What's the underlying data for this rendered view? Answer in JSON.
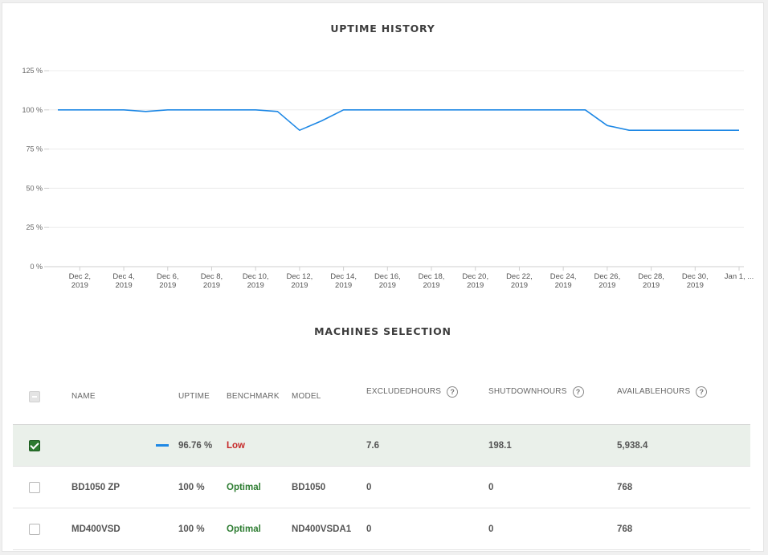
{
  "uptime_section": {
    "title": "UPTIME HISTORY"
  },
  "machines_section": {
    "title": "MACHINES SELECTION"
  },
  "colors": {
    "series": "#1e88e5",
    "low": "#c62828",
    "optimal": "#2e7d32",
    "selected_row": "#eaf0ea",
    "checkbox_checked": "#2d7a30"
  },
  "chart_data": {
    "type": "line",
    "title": "UPTIME HISTORY",
    "ylim": [
      0,
      125
    ],
    "y_ticks": [
      0,
      25,
      50,
      75,
      100,
      125
    ],
    "y_tick_labels": [
      "0 %",
      "25 %",
      "50 %",
      "75 %",
      "100 %",
      "125 %"
    ],
    "grid": "horizontal",
    "x_tick_labels": [
      [
        "Dec 2,",
        "2019"
      ],
      [
        "Dec 4,",
        "2019"
      ],
      [
        "Dec 6,",
        "2019"
      ],
      [
        "Dec 8,",
        "2019"
      ],
      [
        "Dec 10,",
        "2019"
      ],
      [
        "Dec 12,",
        "2019"
      ],
      [
        "Dec 14,",
        "2019"
      ],
      [
        "Dec 16,",
        "2019"
      ],
      [
        "Dec 18,",
        "2019"
      ],
      [
        "Dec 20,",
        "2019"
      ],
      [
        "Dec 22,",
        "2019"
      ],
      [
        "Dec 24,",
        "2019"
      ],
      [
        "Dec 26,",
        "2019"
      ],
      [
        "Dec 28,",
        "2019"
      ],
      [
        "Dec 30,",
        "2019"
      ],
      [
        "Jan 1, ...",
        ""
      ]
    ],
    "series": [
      {
        "x": [
          "2019-12-01",
          "2019-12-02",
          "2019-12-03",
          "2019-12-04",
          "2019-12-05",
          "2019-12-06",
          "2019-12-07",
          "2019-12-08",
          "2019-12-09",
          "2019-12-10",
          "2019-12-11",
          "2019-12-12",
          "2019-12-13",
          "2019-12-14",
          "2019-12-15",
          "2019-12-16",
          "2019-12-17",
          "2019-12-18",
          "2019-12-19",
          "2019-12-20",
          "2019-12-21",
          "2019-12-22",
          "2019-12-23",
          "2019-12-24",
          "2019-12-25",
          "2019-12-26",
          "2019-12-27",
          "2019-12-28",
          "2019-12-29",
          "2019-12-30",
          "2019-12-31",
          "2020-01-01"
        ],
        "values": [
          100,
          100,
          100,
          100,
          99,
          100,
          100,
          100,
          100,
          100,
          99,
          87,
          93,
          100,
          100,
          100,
          100,
          100,
          100,
          100,
          100,
          100,
          100,
          100,
          100,
          90,
          87,
          87,
          87,
          87,
          87,
          87
        ]
      }
    ]
  },
  "table": {
    "headers": {
      "name": "NAME",
      "uptime": "UPTIME",
      "benchmark": "BENCHMARK",
      "model": "MODEL",
      "excluded": "EXCLUDEDHOURS",
      "shutdown": "SHUTDOWNHOURS",
      "available": "AVAILABLEHOURS",
      "help": "?"
    },
    "rows": [
      {
        "name": "",
        "uptime": "96.76 %",
        "benchmark": "Low",
        "model": "",
        "excluded": "7.6",
        "shutdown": "198.1",
        "available": "5,938.4",
        "checked": true
      },
      {
        "name": "BD1050 ZP",
        "uptime": "100 %",
        "benchmark": "Optimal",
        "model": "BD1050",
        "excluded": "0",
        "shutdown": "0",
        "available": "768",
        "checked": false
      },
      {
        "name": "MD400VSD",
        "uptime": "100 %",
        "benchmark": "Optimal",
        "model": "ND400VSDA1",
        "excluded": "0",
        "shutdown": "0",
        "available": "768",
        "checked": false
      }
    ]
  }
}
